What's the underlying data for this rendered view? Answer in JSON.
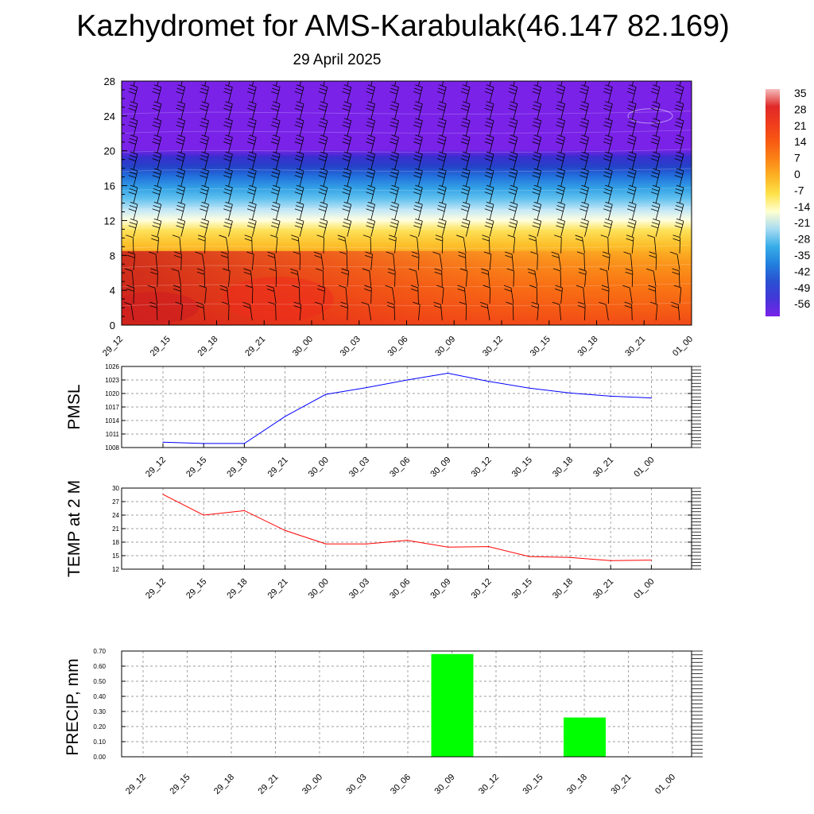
{
  "title": "Kazhydromet for AMS-Karabulak(46.147 82.169)",
  "subtitle": "29 April 2025",
  "time_labels": [
    "29_12",
    "29_15",
    "29_18",
    "29_21",
    "30_00",
    "30_03",
    "30_06",
    "30_09",
    "30_12",
    "30_15",
    "30_18",
    "30_21",
    "01_00"
  ],
  "colors": {
    "pressure": "#0000ff",
    "temperature": "#ff0000",
    "precip": "#00ff00",
    "grid": "#808080"
  },
  "chart_data": [
    {
      "type": "heatmap",
      "name": "cross-section",
      "x": [
        "29_12",
        "29_15",
        "29_18",
        "29_21",
        "30_00",
        "30_03",
        "30_06",
        "30_09",
        "30_12",
        "30_15",
        "30_18",
        "30_21",
        "01_00"
      ],
      "ylim": [
        0,
        28
      ],
      "y_ticks": [
        "0",
        "4",
        "8",
        "12",
        "16",
        "20",
        "24",
        "28"
      ],
      "colorbar_labels": [
        "35",
        "28",
        "21",
        "14",
        "7",
        "0",
        "-7",
        "-14",
        "-21",
        "-28",
        "-35",
        "-42",
        "-49",
        "-56"
      ],
      "colorbar_levels": [
        35,
        28,
        21,
        14,
        7,
        0,
        -7,
        -14,
        -21,
        -28,
        -35,
        -42,
        -49,
        -56
      ],
      "colorbar_colors": [
        "#f4bcbc",
        "#e02828",
        "#f03c1c",
        "#f85a12",
        "#fb8416",
        "#fcb324",
        "#fde24a",
        "#ffffd0",
        "#a8dcf2",
        "#38aee8",
        "#2280de",
        "#2a50d2",
        "#4436d8",
        "#7a22e8"
      ],
      "overlay": "wind barbs"
    },
    {
      "type": "line",
      "name": "PMSL",
      "ylabel": "PMSL",
      "ylim": [
        1008,
        1026
      ],
      "y_ticks": [
        "1026",
        "1023",
        "1020",
        "1017",
        "1014",
        "1011",
        "1008"
      ],
      "x": [
        "29_12",
        "29_15",
        "29_18",
        "29_21",
        "30_00",
        "30_03",
        "30_06",
        "30_09",
        "30_12",
        "30_15",
        "30_18",
        "30_21",
        "01_00"
      ],
      "values": [
        1009.2,
        1008.9,
        1008.9,
        1014.9,
        1019.8,
        1021.3,
        1023.0,
        1024.5,
        1022.7,
        1021.2,
        1020.1,
        1019.4,
        1019.0
      ],
      "grid": true
    },
    {
      "type": "line",
      "name": "TEMP at 2 M",
      "ylabel": "TEMP at 2 M",
      "ylim": [
        12,
        30
      ],
      "y_ticks": [
        "30",
        "27",
        "24",
        "21",
        "18",
        "15",
        "12"
      ],
      "x": [
        "29_12",
        "29_15",
        "29_18",
        "29_21",
        "30_00",
        "30_03",
        "30_06",
        "30_09",
        "30_12",
        "30_15",
        "30_18",
        "30_21",
        "01_00"
      ],
      "values": [
        28.6,
        24.0,
        25.0,
        20.6,
        17.6,
        17.6,
        18.4,
        16.9,
        17.0,
        14.8,
        14.6,
        13.9,
        14.0
      ],
      "grid": true
    },
    {
      "type": "bar",
      "name": "PRECIP, mm",
      "ylabel": "PRECIP, mm",
      "ylim": [
        0,
        0.7
      ],
      "y_ticks": [
        "0.70",
        "0.60",
        "0.50",
        "0.40",
        "0.30",
        "0.20",
        "0.10",
        "0.00"
      ],
      "categories": [
        "29_12",
        "29_15",
        "29_18",
        "29_21",
        "30_00",
        "30_03",
        "30_06",
        "30_09",
        "30_12",
        "30_15",
        "30_18",
        "30_21",
        "01_00"
      ],
      "values": [
        0,
        0,
        0,
        0,
        0,
        0,
        0,
        0.68,
        0,
        0,
        0.26,
        0,
        0
      ],
      "grid": true
    }
  ]
}
